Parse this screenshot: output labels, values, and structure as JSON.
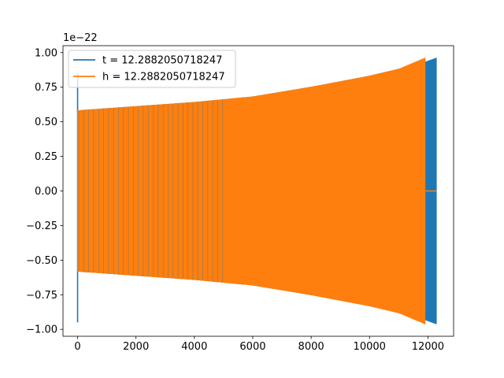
{
  "chart_data": {
    "type": "line",
    "title": "",
    "xlabel": "",
    "ylabel": "",
    "y_offset_label": "1e−22",
    "xlim": [
      -500,
      12880
    ],
    "ylim": [
      -1.05,
      1.05
    ],
    "x_ticks": [
      0,
      2000,
      4000,
      6000,
      8000,
      10000,
      12000
    ],
    "x_tick_labels": [
      "0",
      "2000",
      "4000",
      "6000",
      "8000",
      "10000",
      "12000"
    ],
    "y_ticks": [
      -1.0,
      -0.75,
      -0.5,
      -0.25,
      0.0,
      0.25,
      0.5,
      0.75,
      1.0
    ],
    "y_tick_labels": [
      "−1.00",
      "−0.75",
      "−0.50",
      "−0.25",
      "0.00",
      "0.25",
      "0.50",
      "0.75",
      "1.00"
    ],
    "grid": false,
    "legend_position": "top-left",
    "series": [
      {
        "name": "t = 12.2882050718247",
        "color": "#1f77b4",
        "x_end": 12288,
        "initial_spike": [
          -0.95,
          0.85
        ],
        "envelope_x": [
          0,
          2000,
          4000,
          6000,
          8000,
          10000,
          11000,
          11900,
          12288
        ],
        "envelope_y": [
          0.58,
          0.61,
          0.64,
          0.68,
          0.75,
          0.83,
          0.88,
          0.93,
          0.96
        ]
      },
      {
        "name": "h = 12.2882050718247",
        "color": "#ff7f0e",
        "x_end": 11900,
        "zero_tail_end": 12288,
        "envelope_x": [
          0,
          2000,
          4000,
          6000,
          8000,
          10000,
          11000,
          11900
        ],
        "envelope_y": [
          0.58,
          0.61,
          0.64,
          0.68,
          0.75,
          0.83,
          0.88,
          0.96
        ]
      }
    ]
  }
}
